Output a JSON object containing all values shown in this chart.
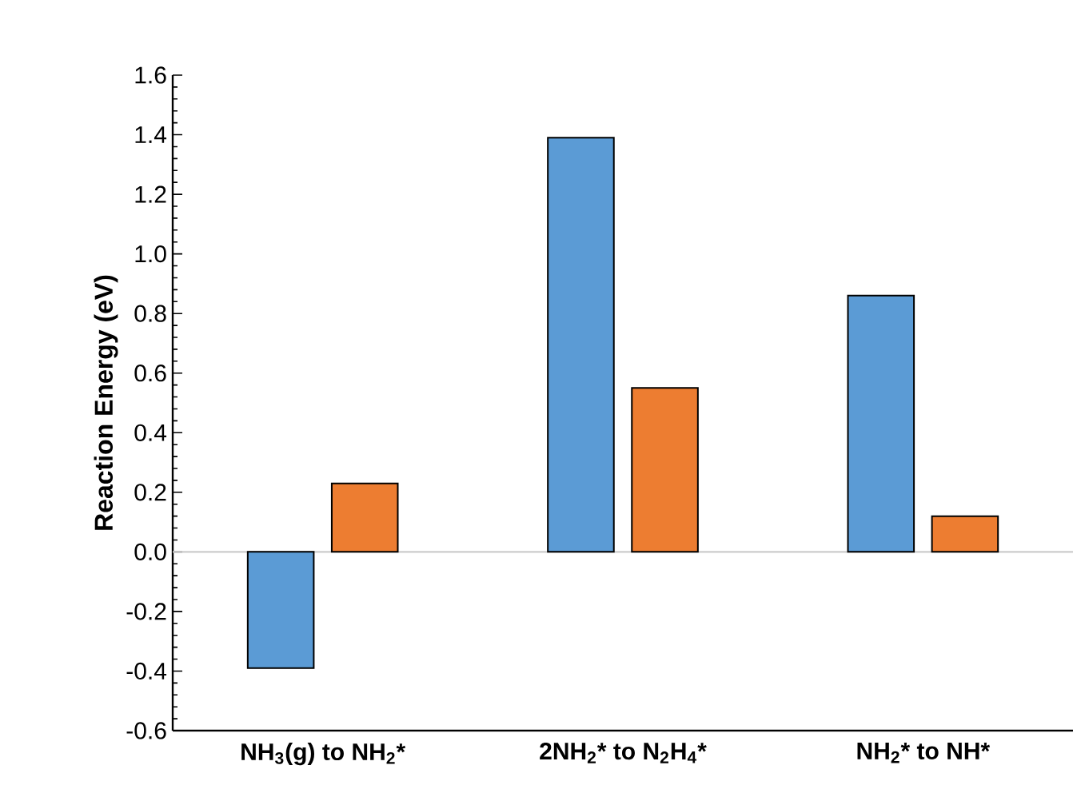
{
  "chart_data": {
    "type": "bar",
    "ylabel": "Reaction Energy (eV)",
    "categories": [
      "NH$_{3}$(g) to NH$_{2}$*",
      "2NH$_{2}$* to N$_{2}$H$_{4}$*",
      "NH$_{2}$* to NH*"
    ],
    "series": [
      {
        "color": "#5b9bd5",
        "values": [
          -0.39,
          1.39,
          0.86
        ]
      },
      {
        "color": "#ed7d31",
        "values": [
          0.23,
          0.55,
          0.12
        ]
      }
    ],
    "ylim": [
      -0.6,
      1.6
    ],
    "yticks": [
      {
        "value": -0.6,
        "label": "-0.6"
      },
      {
        "value": -0.4,
        "label": "-0.4"
      },
      {
        "value": -0.2,
        "label": "-0.2"
      },
      {
        "value": 0,
        "label": "0.0"
      },
      {
        "value": 0.2,
        "label": "0.2"
      },
      {
        "value": 0.4,
        "label": "0.4"
      },
      {
        "value": 0.6,
        "label": "0.6"
      },
      {
        "value": 0.8,
        "label": "0.8"
      },
      {
        "value": 1.0,
        "label": "1.0"
      },
      {
        "value": 1.2,
        "label": "1.2"
      },
      {
        "value": 1.4,
        "label": "1.4"
      },
      {
        "value": 1.6,
        "label": "1.6"
      }
    ],
    "orientation": "vertical"
  }
}
